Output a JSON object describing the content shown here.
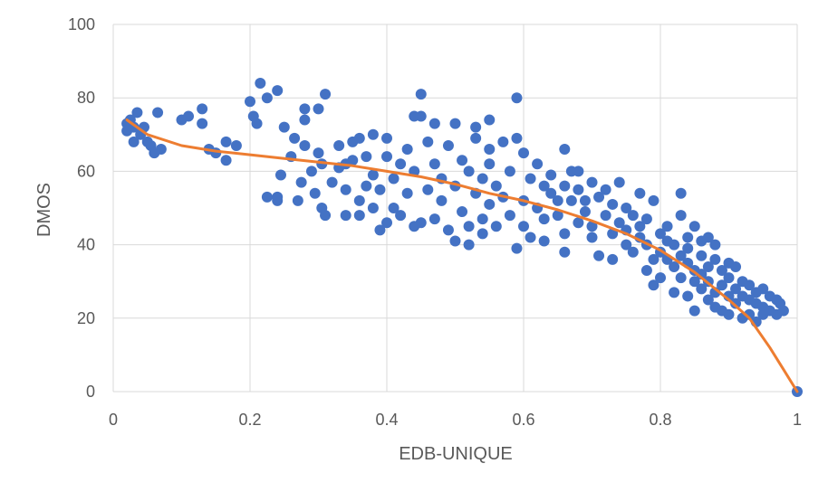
{
  "chart_data": {
    "type": "scatter",
    "title": "",
    "xlabel": "EDB-UNIQUE",
    "ylabel": "DMOS",
    "xlim": [
      0,
      1
    ],
    "ylim": [
      0,
      100
    ],
    "x_ticks": [
      0,
      0.2,
      0.4,
      0.6,
      0.8,
      1
    ],
    "x_tick_labels": [
      "0",
      "0.2",
      "0.4",
      "0.6",
      "0.8",
      "1"
    ],
    "y_ticks": [
      0,
      20,
      40,
      60,
      80,
      100
    ],
    "y_tick_labels": [
      "0",
      "20",
      "40",
      "60",
      "80",
      "100"
    ],
    "grid": true,
    "legend": "none",
    "colors": {
      "points": "#4472C4",
      "trend": "#ED7D31",
      "grid": "#D9D9D9",
      "text": "#595959"
    },
    "series": [
      {
        "type": "scatter",
        "points": [
          [
            0.02,
            71
          ],
          [
            0.02,
            73
          ],
          [
            0.025,
            74
          ],
          [
            0.03,
            72
          ],
          [
            0.03,
            68
          ],
          [
            0.035,
            76
          ],
          [
            0.04,
            70
          ],
          [
            0.045,
            72
          ],
          [
            0.05,
            68
          ],
          [
            0.055,
            67
          ],
          [
            0.06,
            65
          ],
          [
            0.065,
            76
          ],
          [
            0.07,
            66
          ],
          [
            0.1,
            74
          ],
          [
            0.11,
            75
          ],
          [
            0.13,
            77
          ],
          [
            0.13,
            73
          ],
          [
            0.14,
            66
          ],
          [
            0.15,
            65
          ],
          [
            0.165,
            68
          ],
          [
            0.165,
            63
          ],
          [
            0.18,
            67
          ],
          [
            0.2,
            79
          ],
          [
            0.205,
            75
          ],
          [
            0.21,
            73
          ],
          [
            0.215,
            84
          ],
          [
            0.225,
            80
          ],
          [
            0.225,
            53
          ],
          [
            0.24,
            82
          ],
          [
            0.24,
            52
          ],
          [
            0.24,
            53
          ],
          [
            0.245,
            59
          ],
          [
            0.25,
            72
          ],
          [
            0.26,
            64
          ],
          [
            0.265,
            69
          ],
          [
            0.27,
            52
          ],
          [
            0.275,
            57
          ],
          [
            0.28,
            74
          ],
          [
            0.28,
            77
          ],
          [
            0.28,
            67
          ],
          [
            0.29,
            60
          ],
          [
            0.295,
            54
          ],
          [
            0.3,
            77
          ],
          [
            0.3,
            65
          ],
          [
            0.305,
            50
          ],
          [
            0.305,
            62
          ],
          [
            0.31,
            81
          ],
          [
            0.31,
            48
          ],
          [
            0.32,
            57
          ],
          [
            0.33,
            67
          ],
          [
            0.33,
            61
          ],
          [
            0.34,
            55
          ],
          [
            0.34,
            48
          ],
          [
            0.34,
            62
          ],
          [
            0.35,
            68
          ],
          [
            0.35,
            63
          ],
          [
            0.36,
            48
          ],
          [
            0.36,
            52
          ],
          [
            0.36,
            69
          ],
          [
            0.37,
            56
          ],
          [
            0.37,
            64
          ],
          [
            0.38,
            50
          ],
          [
            0.38,
            70
          ],
          [
            0.38,
            59
          ],
          [
            0.39,
            55
          ],
          [
            0.39,
            44
          ],
          [
            0.4,
            46
          ],
          [
            0.4,
            64
          ],
          [
            0.4,
            69
          ],
          [
            0.41,
            58
          ],
          [
            0.41,
            50
          ],
          [
            0.42,
            62
          ],
          [
            0.42,
            48
          ],
          [
            0.43,
            66
          ],
          [
            0.43,
            54
          ],
          [
            0.44,
            75
          ],
          [
            0.44,
            45
          ],
          [
            0.44,
            60
          ],
          [
            0.45,
            81
          ],
          [
            0.45,
            75
          ],
          [
            0.45,
            46
          ],
          [
            0.46,
            68
          ],
          [
            0.46,
            55
          ],
          [
            0.47,
            73
          ],
          [
            0.47,
            47
          ],
          [
            0.47,
            62
          ],
          [
            0.48,
            58
          ],
          [
            0.48,
            52
          ],
          [
            0.49,
            67
          ],
          [
            0.49,
            44
          ],
          [
            0.5,
            73
          ],
          [
            0.5,
            41
          ],
          [
            0.5,
            56
          ],
          [
            0.51,
            63
          ],
          [
            0.51,
            49
          ],
          [
            0.52,
            45
          ],
          [
            0.52,
            60
          ],
          [
            0.52,
            40
          ],
          [
            0.53,
            72
          ],
          [
            0.53,
            54
          ],
          [
            0.53,
            69
          ],
          [
            0.54,
            58
          ],
          [
            0.54,
            47
          ],
          [
            0.54,
            43
          ],
          [
            0.55,
            66
          ],
          [
            0.55,
            62
          ],
          [
            0.55,
            51
          ],
          [
            0.55,
            74
          ],
          [
            0.56,
            56
          ],
          [
            0.56,
            45
          ],
          [
            0.57,
            68
          ],
          [
            0.57,
            53
          ],
          [
            0.58,
            60
          ],
          [
            0.58,
            48
          ],
          [
            0.59,
            80
          ],
          [
            0.59,
            39
          ],
          [
            0.59,
            69
          ],
          [
            0.6,
            65
          ],
          [
            0.6,
            52
          ],
          [
            0.6,
            45
          ],
          [
            0.61,
            42
          ],
          [
            0.61,
            58
          ],
          [
            0.62,
            62
          ],
          [
            0.62,
            50
          ],
          [
            0.63,
            47
          ],
          [
            0.63,
            56
          ],
          [
            0.63,
            41
          ],
          [
            0.64,
            54
          ],
          [
            0.64,
            59
          ],
          [
            0.65,
            52
          ],
          [
            0.65,
            48
          ],
          [
            0.66,
            66
          ],
          [
            0.66,
            56
          ],
          [
            0.66,
            43
          ],
          [
            0.66,
            38
          ],
          [
            0.67,
            60
          ],
          [
            0.67,
            52
          ],
          [
            0.68,
            55
          ],
          [
            0.68,
            46
          ],
          [
            0.68,
            60
          ],
          [
            0.69,
            52
          ],
          [
            0.69,
            49
          ],
          [
            0.7,
            57
          ],
          [
            0.7,
            45
          ],
          [
            0.7,
            42
          ],
          [
            0.71,
            37
          ],
          [
            0.71,
            53
          ],
          [
            0.72,
            48
          ],
          [
            0.72,
            55
          ],
          [
            0.73,
            36
          ],
          [
            0.73,
            51
          ],
          [
            0.73,
            43
          ],
          [
            0.74,
            46
          ],
          [
            0.74,
            57
          ],
          [
            0.75,
            50
          ],
          [
            0.75,
            40
          ],
          [
            0.75,
            44
          ],
          [
            0.76,
            48
          ],
          [
            0.76,
            38
          ],
          [
            0.77,
            42
          ],
          [
            0.77,
            54
          ],
          [
            0.77,
            45
          ],
          [
            0.78,
            33
          ],
          [
            0.78,
            40
          ],
          [
            0.78,
            47
          ],
          [
            0.79,
            29
          ],
          [
            0.79,
            52
          ],
          [
            0.79,
            36
          ],
          [
            0.8,
            43
          ],
          [
            0.8,
            38
          ],
          [
            0.8,
            31
          ],
          [
            0.81,
            45
          ],
          [
            0.81,
            36
          ],
          [
            0.81,
            41
          ],
          [
            0.82,
            40
          ],
          [
            0.82,
            34
          ],
          [
            0.82,
            27
          ],
          [
            0.83,
            48
          ],
          [
            0.83,
            54
          ],
          [
            0.83,
            37
          ],
          [
            0.83,
            31
          ],
          [
            0.84,
            42
          ],
          [
            0.84,
            26
          ],
          [
            0.84,
            35
          ],
          [
            0.84,
            39
          ],
          [
            0.85,
            45
          ],
          [
            0.85,
            30
          ],
          [
            0.85,
            33
          ],
          [
            0.85,
            22
          ],
          [
            0.86,
            41
          ],
          [
            0.86,
            37
          ],
          [
            0.86,
            28
          ],
          [
            0.86,
            32
          ],
          [
            0.87,
            42
          ],
          [
            0.87,
            34
          ],
          [
            0.87,
            25
          ],
          [
            0.87,
            30
          ],
          [
            0.88,
            40
          ],
          [
            0.88,
            36
          ],
          [
            0.88,
            27
          ],
          [
            0.88,
            23
          ],
          [
            0.89,
            33
          ],
          [
            0.89,
            29
          ],
          [
            0.89,
            22
          ],
          [
            0.9,
            35
          ],
          [
            0.9,
            31
          ],
          [
            0.9,
            26
          ],
          [
            0.9,
            21
          ],
          [
            0.91,
            34
          ],
          [
            0.91,
            28
          ],
          [
            0.91,
            24
          ],
          [
            0.92,
            30
          ],
          [
            0.92,
            26
          ],
          [
            0.92,
            20
          ],
          [
            0.93,
            29
          ],
          [
            0.93,
            25
          ],
          [
            0.93,
            21
          ],
          [
            0.94,
            27
          ],
          [
            0.94,
            24
          ],
          [
            0.94,
            19
          ],
          [
            0.95,
            28
          ],
          [
            0.95,
            23
          ],
          [
            0.95,
            21
          ],
          [
            0.96,
            26
          ],
          [
            0.96,
            22
          ],
          [
            0.97,
            25
          ],
          [
            0.97,
            21
          ],
          [
            0.975,
            24
          ],
          [
            0.98,
            22
          ],
          [
            1.0,
            0
          ]
        ]
      },
      {
        "type": "line",
        "points": [
          [
            0.02,
            74
          ],
          [
            0.05,
            70
          ],
          [
            0.1,
            67
          ],
          [
            0.15,
            65.5
          ],
          [
            0.2,
            64.5
          ],
          [
            0.25,
            63.5
          ],
          [
            0.3,
            62.5
          ],
          [
            0.35,
            61.5
          ],
          [
            0.4,
            60
          ],
          [
            0.45,
            58.5
          ],
          [
            0.5,
            56.5
          ],
          [
            0.55,
            54
          ],
          [
            0.6,
            52
          ],
          [
            0.65,
            49.5
          ],
          [
            0.7,
            46.5
          ],
          [
            0.75,
            43
          ],
          [
            0.8,
            38.5
          ],
          [
            0.85,
            32.5
          ],
          [
            0.9,
            25
          ],
          [
            0.93,
            20
          ],
          [
            0.96,
            12
          ],
          [
            0.98,
            6
          ],
          [
            1.0,
            0
          ]
        ]
      }
    ]
  }
}
